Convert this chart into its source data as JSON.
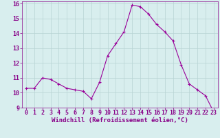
{
  "x": [
    0,
    1,
    2,
    3,
    4,
    5,
    6,
    7,
    8,
    9,
    10,
    11,
    12,
    13,
    14,
    15,
    16,
    17,
    18,
    19,
    20,
    21,
    22,
    23
  ],
  "y": [
    10.3,
    10.3,
    11.0,
    10.9,
    10.6,
    10.3,
    10.2,
    10.1,
    9.6,
    10.7,
    12.5,
    13.3,
    14.1,
    15.9,
    15.8,
    15.3,
    14.6,
    14.1,
    13.5,
    11.9,
    10.6,
    10.2,
    9.8,
    8.7
  ],
  "line_color": "#990099",
  "marker": "+",
  "marker_size": 3,
  "bg_color": "#d8eeee",
  "grid_color": "#b8d4d4",
  "xlabel": "Windchill (Refroidissement éolien,°C)",
  "xlabel_color": "#880088",
  "xlabel_fontsize": 6.5,
  "tick_label_color": "#880088",
  "tick_fontsize": 6,
  "ylim": [
    9,
    16
  ],
  "xlim": [
    -0.5,
    23.5
  ],
  "yticks": [
    9,
    10,
    11,
    12,
    13,
    14,
    15,
    16
  ],
  "xticks": [
    0,
    1,
    2,
    3,
    4,
    5,
    6,
    7,
    8,
    9,
    10,
    11,
    12,
    13,
    14,
    15,
    16,
    17,
    18,
    19,
    20,
    21,
    22,
    23
  ]
}
